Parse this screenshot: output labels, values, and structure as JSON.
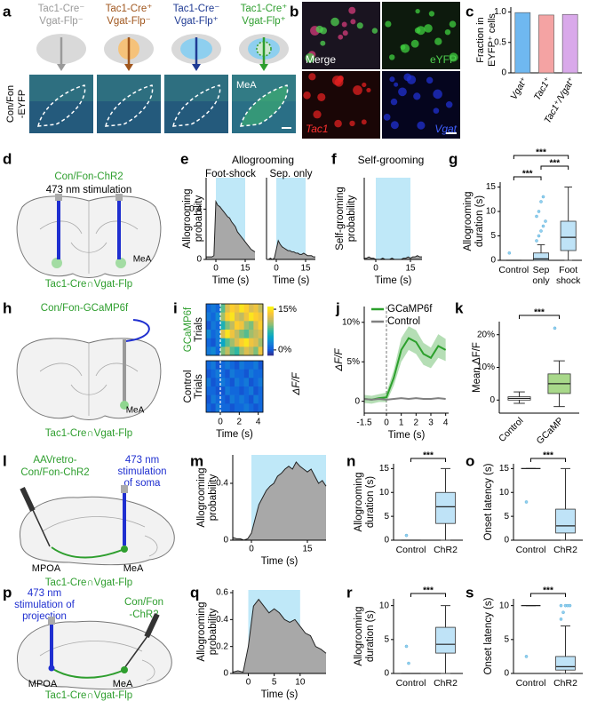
{
  "panel_a": {
    "label": "a",
    "columns": [
      {
        "lines": [
          "Tac1-Cre⁻",
          "Vgat-Flp⁻"
        ],
        "color": "#9a9a9a"
      },
      {
        "lines": [
          "Tac1-Cre⁺",
          "Vgat-Flp⁻"
        ],
        "color": "#a0561d"
      },
      {
        "lines": [
          "Tac1-Cre⁻",
          "Vgat-Flp⁺"
        ],
        "color": "#1f3a93"
      },
      {
        "lines": [
          "Tac1-Cre⁺",
          "Vgat-Flp⁺"
        ],
        "color": "#2e9e2e"
      }
    ],
    "row_label": [
      "Con/Fon",
      "-EYFP"
    ],
    "region": "MeA"
  },
  "panel_b": {
    "label": "b",
    "images": [
      "Merge",
      "eYFP",
      "Tac1",
      "Vgat"
    ]
  },
  "panel_c": {
    "label": "c",
    "type": "bar",
    "ylabel": [
      "Fraction in",
      "EYFP⁺ cells"
    ],
    "categories": [
      "Vgat⁺",
      "Tac1⁺",
      "Tac1⁺/Vgat⁺"
    ],
    "values": [
      0.99,
      0.95,
      0.96
    ],
    "colors": [
      "#6fb8f0",
      "#f4a3a3",
      "#d9a9ea"
    ],
    "ylim": [
      0,
      1.08
    ],
    "yticks": [
      0,
      0.5,
      {
        "value": 1,
        "label": "1.0"
      }
    ]
  },
  "panel_d": {
    "label": "d",
    "virus": "Con/Fon-ChR2",
    "stimulation": "473 nm stimulation",
    "region": "MeA",
    "mouse": "Tac1-Cre∩Vgat-Flp"
  },
  "panel_e": {
    "label": "e",
    "title": "Allogrooming",
    "ylabel": [
      "Allogrooming",
      "probability"
    ],
    "subplots": [
      {
        "type": "area",
        "subtitle": "Foot-shock",
        "xlabel": "Time (s)",
        "x": [
          -5,
          -4,
          -3,
          -2,
          -1,
          0,
          1,
          2,
          3,
          4,
          5,
          6,
          7,
          8,
          9,
          10,
          11,
          12,
          13,
          14,
          15,
          16,
          17,
          18,
          19,
          20
        ],
        "values": [
          0.02,
          0.02,
          0.02,
          0.02,
          0.03,
          0.46,
          0.43,
          0.42,
          0.4,
          0.38,
          0.36,
          0.34,
          0.33,
          0.3,
          0.28,
          0.26,
          0.22,
          0.2,
          0.18,
          0.16,
          0.14,
          0.12,
          0.1,
          0.08,
          0.07,
          0.06
        ],
        "shade": [
          0,
          15
        ],
        "xlim": [
          -5,
          20
        ],
        "ylim": [
          0,
          0.65
        ],
        "xticks": [
          0,
          15
        ],
        "yticks": [
          0,
          0.4
        ]
      },
      {
        "type": "area",
        "subtitle": "Sep. only",
        "xlabel": "Time (s)",
        "x": [
          -5,
          -4,
          -3,
          -2,
          -1,
          0,
          1,
          2,
          3,
          4,
          5,
          6,
          7,
          8,
          9,
          10,
          11,
          12,
          13,
          14,
          15,
          16,
          17,
          18,
          19,
          20
        ],
        "values": [
          0,
          0,
          0.01,
          0,
          0.01,
          0.08,
          0.15,
          0.12,
          0.1,
          0.09,
          0.08,
          0.07,
          0.07,
          0.06,
          0.06,
          0.05,
          0.05,
          0.04,
          0.04,
          0.05,
          0.04,
          0.03,
          0.03,
          0.03,
          0.02,
          0.02
        ],
        "shade": [
          0,
          15
        ],
        "xlim": [
          -5,
          20
        ],
        "ylim": [
          0,
          0.65
        ],
        "xticks": [
          0,
          15
        ]
      }
    ]
  },
  "panel_f": {
    "label": "f",
    "title": "Self-grooming",
    "ylabel": [
      "Self-grooming",
      "probability"
    ],
    "subplots": [
      {
        "type": "area",
        "xlabel": "Time (s)",
        "x": [
          -5,
          -4,
          -3,
          -2,
          -1,
          0,
          1,
          2,
          3,
          4,
          5,
          6,
          7,
          8,
          9,
          10,
          11,
          12,
          13,
          14,
          15,
          16,
          17,
          18,
          19,
          20
        ],
        "values": [
          0.01,
          0.01,
          0.02,
          0.01,
          0.01,
          0,
          0,
          0,
          0.01,
          0,
          0,
          0,
          0.01,
          0,
          0,
          0,
          0,
          0.01,
          0.01,
          0.02,
          0.01,
          0.02,
          0.02,
          0.03,
          0.02,
          0.02
        ],
        "shade": [
          0,
          15
        ],
        "xlim": [
          -5,
          20
        ],
        "ylim": [
          0,
          0.65
        ],
        "xticks": [
          0,
          15
        ]
      }
    ]
  },
  "panel_g": {
    "label": "g",
    "type": "box",
    "ylabel": [
      "Allogrooming",
      "duration (s)"
    ],
    "categories": [
      [
        "Control"
      ],
      [
        "Sep",
        "only"
      ],
      [
        "Foot",
        "shock"
      ]
    ],
    "boxes": [
      {
        "stats": [
          0,
          0,
          0,
          0,
          0
        ],
        "outliers": [
          1.5
        ]
      },
      {
        "stats": [
          0,
          0,
          0.3,
          1.5,
          3.2
        ],
        "outliers": [
          4,
          5,
          6,
          7,
          8,
          9,
          10,
          12,
          13
        ]
      },
      {
        "stats": [
          0,
          2,
          4.7,
          8,
          15
        ]
      }
    ],
    "colors": [
      "#bfe3f7",
      "#bfe3f7",
      "#bfe3f7"
    ],
    "ylim": [
      0,
      16
    ],
    "yticks": [
      0,
      5,
      10,
      15
    ],
    "significance": [
      "***",
      "***",
      "***"
    ]
  },
  "panel_h": {
    "label": "h",
    "virus": "Con/Fon-GCaMP6f",
    "region": "MeA",
    "mouse": "Tac1-Cre∩Vgat-Flp"
  },
  "panel_i": {
    "label": "i",
    "type": "heatmap",
    "groups": [
      {
        "name": [
          "GCaMP6f",
          "Trials"
        ],
        "values": [
          [
            1,
            2,
            1,
            8,
            12,
            14,
            13,
            15,
            14,
            12,
            13,
            11
          ],
          [
            2,
            1,
            3,
            10,
            14,
            15,
            12,
            11,
            13,
            15,
            14,
            13
          ],
          [
            0,
            2,
            1,
            6,
            9,
            11,
            14,
            13,
            10,
            9,
            12,
            14
          ],
          [
            3,
            1,
            2,
            12,
            15,
            13,
            11,
            9,
            8,
            10,
            11,
            12
          ],
          [
            1,
            0,
            2,
            5,
            8,
            10,
            12,
            14,
            15,
            13,
            12,
            10
          ],
          [
            2,
            3,
            1,
            9,
            11,
            8,
            7,
            10,
            12,
            11,
            9,
            13
          ]
        ]
      },
      {
        "name": [
          "Control",
          "Trials"
        ],
        "values": [
          [
            1,
            2,
            0,
            1,
            2,
            1,
            0,
            2,
            1,
            1,
            2,
            0
          ],
          [
            0,
            1,
            2,
            1,
            0,
            2,
            1,
            1,
            0,
            2,
            1,
            1
          ],
          [
            2,
            0,
            1,
            2,
            1,
            0,
            2,
            1,
            2,
            0,
            1,
            2
          ],
          [
            1,
            1,
            0,
            0,
            2,
            1,
            1,
            0,
            1,
            2,
            0,
            1
          ],
          [
            0,
            2,
            1,
            1,
            0,
            2,
            1,
            2,
            1,
            0,
            2,
            1
          ],
          [
            1,
            0,
            2,
            1,
            1,
            0,
            1,
            1,
            2,
            1,
            0,
            1
          ]
        ]
      }
    ],
    "xlim": [
      -1.5,
      4.5
    ],
    "xticks": [
      0,
      2,
      4
    ],
    "xlabel": "Time (s)",
    "clim": [
      -2,
      16
    ],
    "cticks": [
      {
        "value": 15,
        "label": "15%"
      },
      {
        "value": 0,
        "label": "0%"
      }
    ],
    "clabel": "ΔF/F"
  },
  "panel_j": {
    "label": "j",
    "type": "line",
    "ylabel": "ΔF/F",
    "xlabel": "Time (s)",
    "x": [
      -1.5,
      -1,
      -0.5,
      0,
      0.5,
      1,
      1.5,
      2,
      2.5,
      3,
      3.5,
      4
    ],
    "series": [
      {
        "name": "GCaMP6f",
        "color": "#2ca02c",
        "values": [
          0.3,
          0.2,
          0.4,
          0.5,
          3,
          6.5,
          8,
          7.5,
          6,
          5.5,
          7,
          6.5
        ],
        "errors": [
          0.5,
          0.5,
          0.5,
          0.6,
          1,
          1.5,
          1.5,
          1.5,
          1.4,
          1.3,
          1.5,
          1.4
        ]
      },
      {
        "name": "Control",
        "color": "#808080",
        "values": [
          0.3,
          0.2,
          0.3,
          0.2,
          0.3,
          0.4,
          0.3,
          0.4,
          0.3,
          0.3,
          0.4,
          0.3
        ]
      }
    ],
    "xlim": [
      -1.5,
      4.2
    ],
    "ylim": [
      -1.5,
      12
    ],
    "xticks": [
      -1.5,
      0,
      1,
      2,
      3,
      4
    ],
    "yticks": [
      0,
      {
        "value": 5,
        "label": "5%"
      },
      {
        "value": 10,
        "label": "10%"
      }
    ]
  },
  "panel_k": {
    "label": "k",
    "type": "box",
    "ylabel": "Mean ΔF/F",
    "categories": [
      "Control",
      "GCaMP"
    ],
    "boxes": [
      {
        "stats": [
          -1,
          0,
          0.5,
          1,
          2.5
        ]
      },
      {
        "stats": [
          -2,
          2,
          5,
          8,
          12
        ],
        "outliers": [
          22
        ]
      }
    ],
    "colors": [
      "#ffffff",
      "#a8d88a"
    ],
    "ylim": [
      -4,
      24
    ],
    "yticks": [
      0,
      {
        "value": 10,
        "label": "10%"
      },
      {
        "value": 20,
        "label": "20%"
      }
    ],
    "significance": [
      "***"
    ]
  },
  "panel_l": {
    "label": "l",
    "virus": [
      "AAVretro-",
      "Con/Fon-ChR2"
    ],
    "stimulation": [
      "473 nm",
      "stimulation",
      "of soma"
    ],
    "regions": [
      "MPOA",
      "MeA"
    ],
    "mouse": "Tac1-Cre∩Vgat-Flp"
  },
  "panel_m": {
    "label": "m",
    "ylabel": [
      "Allogrooming",
      "probability"
    ],
    "subplots": [
      {
        "type": "area",
        "xlabel": "Time (s)",
        "x": [
          -5,
          -4,
          -3,
          -2,
          -1,
          0,
          1,
          2,
          3,
          4,
          5,
          6,
          7,
          8,
          9,
          10,
          11,
          12,
          13,
          14,
          15,
          16,
          17,
          18,
          19,
          20
        ],
        "values": [
          0.02,
          0.01,
          0.01,
          0,
          0.01,
          0.05,
          0.15,
          0.25,
          0.3,
          0.35,
          0.38,
          0.4,
          0.45,
          0.47,
          0.5,
          0.52,
          0.5,
          0.55,
          0.52,
          0.5,
          0.48,
          0.5,
          0.45,
          0.4,
          0.42,
          0.38
        ],
        "shade": [
          0,
          20
        ],
        "xlim": [
          -5,
          20
        ],
        "ylim": [
          0,
          0.6
        ],
        "xticks": [
          0,
          15
        ],
        "yticks": [
          0,
          0.4
        ]
      }
    ]
  },
  "panel_n": {
    "label": "n",
    "type": "box",
    "ylabel": [
      "Allogrooming",
      "duration (s)"
    ],
    "categories": [
      "Control",
      "ChR2"
    ],
    "boxes": [
      {
        "stats": [
          0,
          0,
          0,
          0,
          0
        ],
        "outliers": [
          1
        ]
      },
      {
        "stats": [
          0,
          3.5,
          7,
          10,
          15
        ]
      }
    ],
    "colors": [
      "#bfe3f7",
      "#bfe3f7"
    ],
    "ylim": [
      0,
      16
    ],
    "yticks": [
      0,
      5,
      10,
      15
    ],
    "significance": [
      "***"
    ]
  },
  "panel_o": {
    "label": "o",
    "type": "box",
    "ylabel": "Onset latency (s)",
    "categories": [
      "Control",
      "ChR2"
    ],
    "boxes": [
      {
        "stats": [
          15,
          15,
          15,
          15,
          15
        ],
        "outliers": [
          8
        ]
      },
      {
        "stats": [
          0,
          1.5,
          3,
          6.5,
          15
        ]
      }
    ],
    "colors": [
      "#bfe3f7",
      "#bfe3f7"
    ],
    "ylim": [
      0,
      16
    ],
    "yticks": [
      0,
      5,
      10,
      15
    ],
    "significance": [
      "***"
    ]
  },
  "panel_p": {
    "label": "p",
    "stimulation": [
      "473 nm",
      "stimulation of",
      "projection"
    ],
    "virus": [
      "Con/Fon",
      "-ChR2"
    ],
    "regions": [
      "MPOA",
      "MeA"
    ],
    "mouse": "Tac1-Cre∩Vgat-Flp"
  },
  "panel_q": {
    "label": "q",
    "ylabel": [
      "Allogrooming",
      "probability"
    ],
    "subplots": [
      {
        "type": "area",
        "xlabel": "Time (s)",
        "x": [
          -3,
          -2,
          -1,
          0,
          1,
          2,
          3,
          4,
          5,
          6,
          7,
          8,
          9,
          10,
          11,
          12,
          13,
          14,
          15
        ],
        "values": [
          0.01,
          0.02,
          0.01,
          0.2,
          0.5,
          0.55,
          0.5,
          0.45,
          0.48,
          0.45,
          0.4,
          0.38,
          0.4,
          0.35,
          0.3,
          0.28,
          0.2,
          0.18,
          0.15
        ],
        "shade": [
          0,
          10
        ],
        "xlim": [
          -3,
          15
        ],
        "ylim": [
          0,
          0.62
        ],
        "xticks": [
          0,
          5,
          10
        ],
        "yticks": [
          0,
          0.2,
          0.4,
          0.6
        ]
      }
    ]
  },
  "panel_r": {
    "label": "r",
    "type": "box",
    "ylabel": [
      "Allogrooming",
      "duration (s)"
    ],
    "categories": [
      "Control",
      "ChR2"
    ],
    "boxes": [
      {
        "stats": [
          0,
          0,
          0,
          0,
          0
        ],
        "outliers": [
          4,
          1.5
        ]
      },
      {
        "stats": [
          0,
          3,
          4.3,
          6.8,
          10
        ]
      }
    ],
    "colors": [
      "#bfe3f7",
      "#bfe3f7"
    ],
    "ylim": [
      0,
      11
    ],
    "yticks": [
      0,
      5,
      10
    ],
    "significance": [
      "***"
    ]
  },
  "panel_s": {
    "label": "s",
    "type": "box",
    "ylabel": "Onset latency (s)",
    "categories": [
      "Control",
      "ChR2"
    ],
    "boxes": [
      {
        "stats": [
          10,
          10,
          10,
          10,
          10
        ],
        "outliers": [
          2.5
        ]
      },
      {
        "stats": [
          0,
          0.5,
          1,
          2.5,
          7
        ],
        "outliers": [
          8,
          9,
          10,
          10,
          10,
          10
        ]
      }
    ],
    "colors": [
      "#bfe3f7",
      "#bfe3f7"
    ],
    "ylim": [
      0,
      11
    ],
    "yticks": [
      0,
      5,
      10
    ],
    "significance": [
      "***"
    ]
  }
}
